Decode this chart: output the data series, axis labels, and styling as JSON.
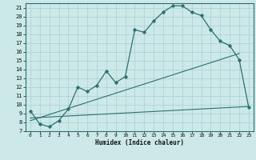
{
  "title": "",
  "xlabel": "Humidex (Indice chaleur)",
  "bg_color": "#cce8e8",
  "line_color": "#2d7070",
  "grid_color": "#aacfcf",
  "xlim": [
    -0.5,
    23.5
  ],
  "ylim": [
    7,
    21.5
  ],
  "xticks": [
    0,
    1,
    2,
    3,
    4,
    5,
    6,
    7,
    8,
    9,
    10,
    11,
    12,
    13,
    14,
    15,
    16,
    17,
    18,
    19,
    20,
    21,
    22,
    23
  ],
  "yticks": [
    7,
    8,
    9,
    10,
    11,
    12,
    13,
    14,
    15,
    16,
    17,
    18,
    19,
    20,
    21
  ],
  "curve_x": [
    0,
    1,
    2,
    3,
    4,
    5,
    6,
    7,
    8,
    9,
    10,
    11,
    12,
    13,
    14,
    15,
    16,
    17,
    18,
    19,
    20,
    21,
    22,
    23
  ],
  "curve_y": [
    9.3,
    7.8,
    7.5,
    8.2,
    9.5,
    12.0,
    11.5,
    12.2,
    13.8,
    12.5,
    13.2,
    18.5,
    18.2,
    19.5,
    20.5,
    21.2,
    21.2,
    20.5,
    20.1,
    18.5,
    17.2,
    16.7,
    15.1,
    9.7
  ],
  "line1_x": [
    0,
    22
  ],
  "line1_y": [
    8.2,
    15.8
  ],
  "line2_x": [
    0,
    23
  ],
  "line2_y": [
    8.5,
    9.8
  ],
  "spine_color": "#2d7070"
}
